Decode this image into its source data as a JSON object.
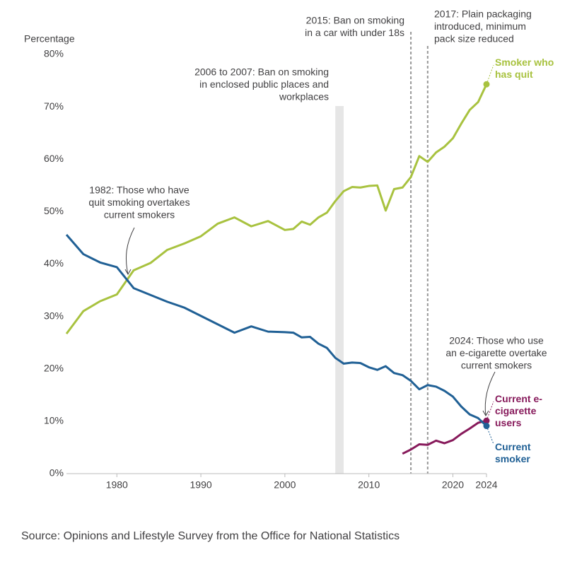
{
  "chart_data": {
    "type": "line",
    "y_label": "Percentage",
    "source": "Source: Opinions and Lifestyle Survey from the Office for National Statistics",
    "x": [
      1974,
      1976,
      1978,
      1980,
      1982,
      1984,
      1986,
      1988,
      1990,
      1992,
      1994,
      1996,
      1998,
      2000,
      2001,
      2002,
      2003,
      2004,
      2005,
      2006,
      2007,
      2008,
      2009,
      2010,
      2011,
      2012,
      2013,
      2014,
      2015,
      2016,
      2017,
      2018,
      2019,
      2020,
      2021,
      2022,
      2023,
      2024
    ],
    "series": [
      {
        "name": "Smoker who has quit",
        "color": "#a8c23f",
        "values": [
          26.7,
          31.0,
          32.9,
          34.2,
          38.8,
          40.2,
          42.7,
          43.9,
          45.3,
          47.7,
          48.9,
          47.2,
          48.2,
          46.5,
          46.7,
          48.1,
          47.5,
          48.9,
          49.8,
          52.0,
          53.9,
          54.7,
          54.6,
          54.9,
          55.0,
          50.2,
          54.3,
          54.6,
          56.6,
          60.6,
          59.5,
          61.3,
          62.4,
          64.0,
          66.8,
          69.4,
          70.9,
          74.3
        ]
      },
      {
        "name": "Current e-cigarette users",
        "color": "#871a5b",
        "values": [
          null,
          null,
          null,
          null,
          null,
          null,
          null,
          null,
          null,
          null,
          null,
          null,
          null,
          null,
          null,
          null,
          null,
          null,
          null,
          null,
          null,
          null,
          null,
          null,
          null,
          null,
          null,
          3.8,
          4.6,
          5.6,
          5.5,
          6.3,
          5.8,
          6.4,
          7.6,
          8.6,
          9.7,
          10.1
        ]
      },
      {
        "name": "Current smoker",
        "color": "#206095",
        "values": [
          45.6,
          41.9,
          40.3,
          39.4,
          35.4,
          34.1,
          32.8,
          31.7,
          30.1,
          28.5,
          26.9,
          28.1,
          27.1,
          27.0,
          26.9,
          26.0,
          26.1,
          24.8,
          24.0,
          22.1,
          21.0,
          21.2,
          21.1,
          20.3,
          19.8,
          20.5,
          19.2,
          18.8,
          17.7,
          16.1,
          16.9,
          16.6,
          15.8,
          14.7,
          12.8,
          11.3,
          10.6,
          9.1
        ]
      }
    ],
    "xlim": [
      1974,
      2024
    ],
    "xticks": [
      1980,
      1990,
      2000,
      2010,
      2020,
      2024
    ],
    "ylim": [
      0,
      80
    ],
    "yticks": [
      {
        "value": 0,
        "label": "0%"
      },
      {
        "value": 10,
        "label": "10%"
      },
      {
        "value": 20,
        "label": "20%"
      },
      {
        "value": 30,
        "label": "30%"
      },
      {
        "value": 40,
        "label": "40%"
      },
      {
        "value": 50,
        "label": "50%"
      },
      {
        "value": 60,
        "label": "60%"
      },
      {
        "value": 70,
        "label": "70%"
      },
      {
        "value": 80,
        "label": "80%"
      }
    ],
    "grid": false,
    "bands": [
      {
        "from": 2006,
        "to": 2007,
        "label": [
          "2006 to 2007: Ban on smoking",
          "in enclosed public places and",
          "workplaces"
        ]
      }
    ],
    "vlines": [
      {
        "x": 2015,
        "label": [
          "2015: Ban on smoking",
          "in a car with under 18s"
        ]
      },
      {
        "x": 2017,
        "label": [
          "2017: Plain packaging",
          "introduced, minimum",
          "pack size reduced"
        ]
      }
    ],
    "annotations": [
      {
        "text": [
          "1982: Those who have",
          "quit smoking overtakes",
          "current smokers"
        ]
      },
      {
        "text": [
          "2024: Those who use",
          "an e-cigarette overtake",
          "current smokers"
        ]
      }
    ]
  }
}
